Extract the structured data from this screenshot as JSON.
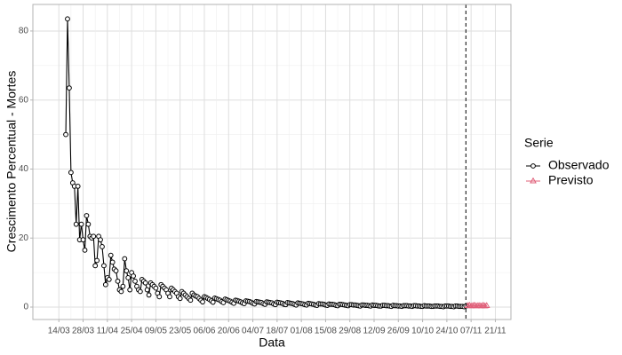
{
  "chart_data": {
    "type": "line",
    "xlabel": "Data",
    "ylabel": "Crescimento Percentual - Mortes",
    "xlim": [
      "28/02",
      "30/11"
    ],
    "xticks": [
      "14/03",
      "28/03",
      "11/04",
      "25/04",
      "09/05",
      "23/05",
      "06/06",
      "20/06",
      "04/07",
      "18/07",
      "01/08",
      "15/08",
      "29/08",
      "12/09",
      "26/09",
      "10/10",
      "24/10",
      "07/11",
      "21/11"
    ],
    "ylim": [
      -3.6,
      87.7
    ],
    "yticks": [
      0,
      20,
      40,
      60,
      80
    ],
    "grid": true,
    "vline_x": "04/11",
    "legend_title": "Serie",
    "legend_position": "right",
    "series": [
      {
        "name": "Observado",
        "color": "#000000",
        "marker": "circle",
        "x": [
          "18/03",
          "19/03",
          "20/03",
          "21/03",
          "22/03",
          "23/03",
          "24/03",
          "25/03",
          "26/03",
          "27/03",
          "28/03",
          "29/03",
          "30/03",
          "31/03",
          "01/04",
          "02/04",
          "03/04",
          "04/04",
          "05/04",
          "06/04",
          "07/04",
          "08/04",
          "09/04",
          "10/04",
          "11/04",
          "12/04",
          "13/04",
          "14/04",
          "15/04",
          "16/04",
          "17/04",
          "18/04",
          "19/04",
          "20/04",
          "21/04",
          "22/04",
          "23/04",
          "24/04",
          "25/04",
          "26/04",
          "27/04",
          "28/04",
          "29/04",
          "30/04",
          "01/05",
          "02/05",
          "03/05",
          "04/05",
          "05/05",
          "06/05",
          "07/05",
          "08/05",
          "09/05",
          "10/05",
          "11/05",
          "12/05",
          "13/05",
          "14/05",
          "15/05",
          "16/05",
          "17/05",
          "18/05",
          "19/05",
          "20/05",
          "21/05",
          "22/05",
          "23/05",
          "24/05",
          "25/05",
          "26/05",
          "27/05",
          "28/05",
          "29/05",
          "30/05",
          "31/05",
          "01/06",
          "02/06",
          "03/06",
          "04/06",
          "05/06",
          "06/06",
          "07/06",
          "08/06",
          "09/06",
          "10/06",
          "11/06",
          "12/06",
          "13/06",
          "14/06",
          "15/06",
          "16/06",
          "17/06",
          "18/06",
          "19/06",
          "20/06",
          "21/06",
          "22/06",
          "23/06",
          "24/06",
          "25/06",
          "26/06",
          "27/06",
          "28/06",
          "29/06",
          "30/06",
          "01/07",
          "02/07",
          "03/07",
          "04/07",
          "05/07",
          "06/07",
          "07/07",
          "08/07",
          "09/07",
          "10/07",
          "11/07",
          "12/07",
          "13/07",
          "14/07",
          "15/07",
          "16/07",
          "17/07",
          "18/07",
          "19/07",
          "20/07",
          "21/07",
          "22/07",
          "23/07",
          "24/07",
          "25/07",
          "26/07",
          "27/07",
          "28/07",
          "29/07",
          "30/07",
          "31/07",
          "01/08",
          "02/08",
          "03/08",
          "04/08",
          "05/08",
          "06/08",
          "07/08",
          "08/08",
          "09/08",
          "10/08",
          "11/08",
          "12/08",
          "13/08",
          "14/08",
          "15/08",
          "16/08",
          "17/08",
          "18/08",
          "19/08",
          "20/08",
          "21/08",
          "22/08",
          "23/08",
          "24/08",
          "25/08",
          "26/08",
          "27/08",
          "28/08",
          "29/08",
          "30/08",
          "31/08",
          "01/09",
          "02/09",
          "03/09",
          "04/09",
          "05/09",
          "06/09",
          "07/09",
          "08/09",
          "09/09",
          "10/09",
          "11/09",
          "12/09",
          "13/09",
          "14/09",
          "15/09",
          "16/09",
          "17/09",
          "18/09",
          "19/09",
          "20/09",
          "21/09",
          "22/09",
          "23/09",
          "24/09",
          "25/09",
          "26/09",
          "27/09",
          "28/09",
          "29/09",
          "30/09",
          "01/10",
          "02/10",
          "03/10",
          "04/10",
          "05/10",
          "06/10",
          "07/10",
          "08/10",
          "09/10",
          "10/10",
          "11/10",
          "12/10",
          "13/10",
          "14/10",
          "15/10",
          "16/10",
          "17/10",
          "18/10",
          "19/10",
          "20/10",
          "21/10",
          "22/10",
          "23/10",
          "24/10",
          "25/10",
          "26/10",
          "27/10",
          "28/10",
          "29/10",
          "30/10",
          "31/10",
          "01/11",
          "02/11",
          "03/11",
          "04/11"
        ],
        "values": [
          50,
          83.5,
          63.5,
          39,
          36,
          35,
          24,
          35,
          19.5,
          24,
          19.5,
          16.5,
          26.5,
          24,
          20.5,
          20,
          20.5,
          12,
          13.5,
          20.5,
          19.5,
          17.5,
          12,
          6.5,
          8.5,
          8,
          15,
          13,
          11,
          10.5,
          7.5,
          5,
          4.5,
          6,
          14,
          10.5,
          8.5,
          5,
          10,
          9,
          7.5,
          6,
          5,
          4.5,
          8,
          7.5,
          7,
          5,
          3.5,
          7,
          6.5,
          6,
          5.5,
          4,
          3,
          6.5,
          6,
          5.5,
          5,
          4,
          3,
          5.5,
          5,
          4.5,
          4,
          3,
          2.5,
          4.5,
          4,
          3.5,
          3,
          2.5,
          2,
          4,
          3.5,
          3.2,
          3,
          2.5,
          2,
          1.5,
          3,
          2.8,
          2.5,
          2.2,
          1.8,
          1.4,
          2.6,
          2.4,
          2.2,
          2,
          1.6,
          1.3,
          2.3,
          2.1,
          1.9,
          1.7,
          1.4,
          1.1,
          2,
          1.9,
          1.7,
          1.5,
          1.2,
          1,
          1.8,
          1.7,
          1.6,
          1.4,
          1.1,
          0.9,
          1.6,
          1.5,
          1.4,
          1.3,
          1,
          0.8,
          1.5,
          1.4,
          1.3,
          1.2,
          0.9,
          0.7,
          1.4,
          1.3,
          1.2,
          1.1,
          0.8,
          0.7,
          1.3,
          1.2,
          1.1,
          1,
          0.8,
          0.6,
          1.2,
          1.1,
          1,
          0.9,
          0.7,
          0.6,
          1.1,
          1,
          0.9,
          0.8,
          0.6,
          0.5,
          1,
          0.9,
          0.9,
          0.8,
          0.6,
          0.5,
          0.9,
          0.8,
          0.8,
          0.7,
          0.5,
          0.4,
          0.8,
          0.8,
          0.7,
          0.6,
          0.5,
          0.4,
          0.7,
          0.7,
          0.6,
          0.6,
          0.5,
          0.4,
          0.3,
          0.6,
          0.6,
          0.5,
          0.5,
          0.4,
          0.3,
          0.6,
          0.5,
          0.5,
          0.4,
          0.3,
          0.3,
          0.5,
          0.5,
          0.4,
          0.4,
          0.3,
          0.2,
          0.5,
          0.4,
          0.4,
          0.3,
          0.3,
          0.2,
          0.4,
          0.4,
          0.4,
          0.3,
          0.3,
          0.2,
          0.4,
          0.4,
          0.3,
          0.3,
          0.2,
          0.2,
          0.4,
          0.3,
          0.3,
          0.3,
          0.2,
          0.2,
          0.3,
          0.3,
          0.3,
          0.2,
          0.2,
          0.1,
          0.3,
          0.3,
          0.3,
          0.2,
          0.2,
          0.1,
          0.3,
          0.3,
          0.2,
          0.2,
          0.2,
          0.1,
          0.3
        ]
      },
      {
        "name": "Previsto",
        "color": "#e0607a",
        "marker": "triangle",
        "x": [
          "05/11",
          "06/11",
          "07/11",
          "08/11",
          "09/11",
          "10/11",
          "11/11",
          "12/11",
          "13/11",
          "14/11",
          "15/11",
          "16/11"
        ],
        "values": [
          0.4,
          0.5,
          0.3,
          0.4,
          0.5,
          0.3,
          0.4,
          0.4,
          0.3,
          0.5,
          0.3,
          0.4
        ]
      }
    ]
  }
}
